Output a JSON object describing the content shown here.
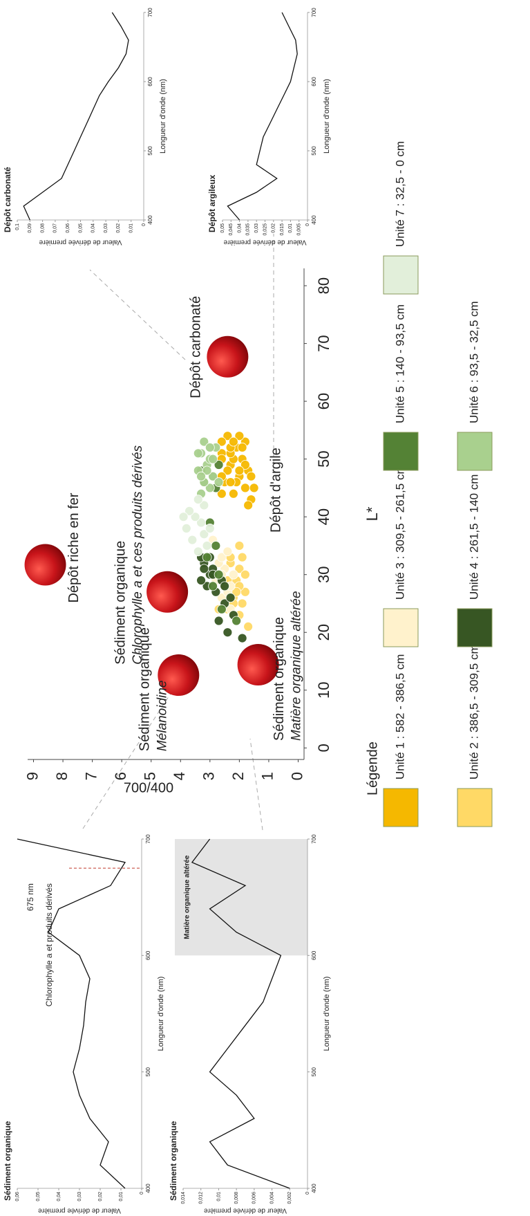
{
  "chart_data": [
    {
      "type": "scatter",
      "xlabel": "L*",
      "ylabel": "700/400",
      "xlim": [
        -2,
        83
      ],
      "ylim": [
        -0.2,
        9.2
      ],
      "xticks": [
        0,
        10,
        20,
        30,
        40,
        50,
        60,
        70,
        80
      ],
      "yticks": [
        0,
        1,
        2,
        3,
        4,
        5,
        6,
        7,
        8,
        9
      ],
      "grid": false,
      "legend_title": "Légende",
      "series": [
        {
          "name": "Unité 1 : 582 - 386,5 cm",
          "color": "#f5b800",
          "x": [
            43,
            44,
            45,
            46,
            47,
            48,
            49,
            50,
            51,
            52,
            53,
            54,
            44,
            46,
            48,
            50,
            52,
            54,
            45,
            47,
            49,
            51,
            53,
            42,
            47,
            50,
            52,
            48,
            46,
            53
          ],
          "values": [
            1.6,
            2.2,
            1.8,
            2.5,
            2.0,
            1.7,
            2.3,
            1.9,
            2.6,
            2.1,
            1.8,
            2.4,
            2.6,
            2.1,
            2.4,
            2.2,
            1.9,
            2.0,
            1.5,
            2.6,
            1.8,
            2.3,
            2.6,
            1.7,
            1.6,
            2.6,
            2.3,
            2.0,
            2.3,
            2.2
          ]
        },
        {
          "name": "Unité 2 : 386,5 - 309,5 cm",
          "color": "#ffd966",
          "x": [
            21,
            23,
            24,
            25,
            26,
            27,
            28,
            29,
            30,
            31,
            32,
            33,
            34,
            24,
            26,
            28,
            30,
            32,
            25,
            29,
            31,
            33,
            27,
            35
          ],
          "values": [
            1.7,
            2.0,
            2.4,
            1.9,
            2.2,
            1.8,
            2.5,
            2.1,
            2.6,
            2.0,
            2.3,
            1.9,
            2.4,
            2.7,
            2.6,
            2.0,
            1.8,
            2.7,
            2.2,
            2.4,
            2.5,
            2.3,
            2.1,
            2.0
          ]
        },
        {
          "name": "Unité 3 : 309,5 - 261,5 cm",
          "color": "#fff2cc",
          "x": [
            24,
            26,
            27,
            29,
            30,
            31,
            32,
            33,
            34,
            36,
            28,
            30
          ],
          "values": [
            2.3,
            2.6,
            2.4,
            2.8,
            2.2,
            2.5,
            2.7,
            2.6,
            2.4,
            2.9,
            2.3,
            2.6
          ]
        },
        {
          "name": "Unité 4 : 261,5 - 140 cm",
          "color": "#375623",
          "x": [
            19,
            20,
            22,
            23,
            25,
            27,
            28,
            29,
            30,
            31,
            32,
            33,
            26,
            29,
            31,
            33,
            28,
            30
          ],
          "values": [
            1.9,
            2.4,
            2.7,
            2.2,
            2.5,
            2.8,
            3.1,
            2.6,
            3.0,
            2.9,
            3.2,
            3.0,
            2.3,
            3.3,
            3.2,
            3.3,
            2.5,
            2.9
          ]
        },
        {
          "name": "Unité 5 : 140 - 93,5 cm",
          "color": "#548235",
          "x": [
            22,
            24,
            28,
            30,
            33,
            35,
            39,
            45,
            46,
            47,
            49,
            48
          ],
          "values": [
            2.1,
            2.6,
            2.9,
            2.7,
            3.1,
            2.8,
            3.0,
            2.8,
            3.2,
            2.9,
            2.7,
            3.3
          ]
        },
        {
          "name": "Unité 6 : 93,5 - 32,5 cm",
          "color": "#a9d08e",
          "x": [
            44,
            45,
            46,
            47,
            48,
            49,
            50,
            51,
            52,
            53,
            46,
            48,
            50,
            52,
            47,
            51
          ],
          "values": [
            3.3,
            3.0,
            3.2,
            2.9,
            3.4,
            3.1,
            3.0,
            3.3,
            2.8,
            3.2,
            2.7,
            3.1,
            2.9,
            3.0,
            3.3,
            3.4
          ]
        },
        {
          "name": "Unité 7 : 32,5 - 0 cm",
          "color": "#e2efda",
          "x": [
            34,
            35,
            36,
            37,
            38,
            39,
            40,
            41,
            42,
            43,
            38,
            40
          ],
          "values": [
            3.4,
            3.1,
            3.6,
            3.2,
            3.8,
            3.3,
            3.5,
            3.7,
            3.2,
            3.4,
            3.0,
            3.9
          ]
        }
      ],
      "zones": [
        {
          "label": "Dépôt riche en fer",
          "x": 31.7,
          "y": 8.6
        },
        {
          "label": "Sédiment organique",
          "sublabel": "Chlorophylle a et ces produits dérivés",
          "x": 27,
          "y": 4.45
        },
        {
          "label": "Sédiment organique",
          "sublabel": "Mélanoidine",
          "x": 12.6,
          "y": 4.07
        },
        {
          "label": "Sédiment organique",
          "sublabel": "Matière organique altérée",
          "x": 14.4,
          "y": 1.36
        },
        {
          "label": "Dépôt carbonaté",
          "x": 67.7,
          "y": 2.4
        },
        {
          "label": "Dépôt d'argile"
        }
      ]
    },
    {
      "type": "line",
      "title": "Dépôt carbonaté",
      "xlabel": "Longueur d'onde (nm)",
      "ylabel": "Valeur de dérivée première",
      "x": [
        400,
        420,
        440,
        460,
        480,
        500,
        520,
        540,
        560,
        580,
        600,
        620,
        640,
        660,
        680,
        700
      ],
      "series": [
        {
          "color": "#111111",
          "values": [
            0.09,
            0.095,
            0.08,
            0.065,
            0.06,
            0.055,
            0.05,
            0.045,
            0.04,
            0.035,
            0.028,
            0.02,
            0.014,
            0.012,
            0.018,
            0.025
          ]
        }
      ],
      "xlim": [
        400,
        700
      ],
      "xticks": [
        400,
        500,
        600,
        700
      ],
      "ylim": [
        0,
        0.1
      ],
      "yticks": [
        0,
        {
          "value": 0.01,
          "label": "0,01"
        },
        {
          "value": 0.02,
          "label": "0,02"
        },
        {
          "value": 0.03,
          "label": "0,03"
        },
        {
          "value": 0.04,
          "label": "0,04"
        },
        {
          "value": 0.05,
          "label": "0,05"
        },
        {
          "value": 0.06,
          "label": "0,06"
        },
        {
          "value": 0.07,
          "label": "0,07"
        },
        {
          "value": 0.08,
          "label": "0,08"
        },
        {
          "value": 0.09,
          "label": "0,09"
        },
        {
          "value": 0.1,
          "label": "0,1"
        }
      ]
    },
    {
      "type": "line",
      "title": "Dépôt argileux",
      "xlabel": "Longueur d'onde (nm)",
      "ylabel": "Valeur de dérivée première",
      "x": [
        400,
        420,
        440,
        460,
        480,
        500,
        520,
        540,
        560,
        580,
        600,
        620,
        640,
        660,
        680,
        700
      ],
      "series": [
        {
          "color": "#111111",
          "values": [
            0.04,
            0.047,
            0.03,
            0.018,
            0.03,
            0.028,
            0.026,
            0.022,
            0.018,
            0.014,
            0.01,
            0.008,
            0.006,
            0.007,
            0.011,
            0.015
          ]
        }
      ],
      "xlim": [
        400,
        700
      ],
      "xticks": [
        400,
        500,
        600,
        700
      ],
      "ylim": [
        0,
        0.05
      ],
      "yticks": [
        0,
        {
          "value": 0.005,
          "label": "0,005"
        },
        {
          "value": 0.01,
          "label": "0,01"
        },
        {
          "value": 0.015,
          "label": "0,015"
        },
        {
          "value": 0.02,
          "label": "0,02"
        },
        {
          "value": 0.025,
          "label": "0,025"
        },
        {
          "value": 0.03,
          "label": "0,03"
        },
        {
          "value": 0.035,
          "label": "0,035"
        },
        {
          "value": 0.04,
          "label": "0,04"
        },
        {
          "value": 0.045,
          "label": "0,045"
        },
        {
          "value": 0.05,
          "label": "0,05"
        }
      ]
    },
    {
      "type": "line",
      "title": "Sédiment organique",
      "xlabel": "Longueur d'onde (nm)",
      "ylabel": "Valeur de dérivée première",
      "x": [
        400,
        420,
        440,
        460,
        480,
        500,
        520,
        540,
        560,
        580,
        600,
        620,
        640,
        660,
        680,
        700
      ],
      "series": [
        {
          "color": "#111111",
          "values": [
            0.008,
            0.02,
            0.016,
            0.025,
            0.03,
            0.033,
            0.03,
            0.028,
            0.027,
            0.025,
            0.03,
            0.045,
            0.04,
            0.015,
            0.008,
            0.06
          ]
        }
      ],
      "xlim": [
        400,
        700
      ],
      "xticks": [
        400,
        500,
        600,
        700
      ],
      "ylim": [
        0,
        0.06
      ],
      "yticks": [
        0,
        {
          "value": 0.01,
          "label": "0,01"
        },
        {
          "value": 0.02,
          "label": "0,02"
        },
        {
          "value": 0.03,
          "label": "0,03"
        },
        {
          "value": 0.04,
          "label": "0,04"
        },
        {
          "value": 0.05,
          "label": "0,05"
        },
        {
          "value": 0.06,
          "label": "0,06"
        }
      ],
      "marker": {
        "value": 675,
        "label": "675 nm",
        "note": "Chlorophylle a et produits dérivés",
        "color": "#c0392b"
      }
    },
    {
      "type": "line",
      "title": "Sédiment organique",
      "xlabel": "Longueur d'onde (nm)",
      "ylabel": "Valeur de dérivée première",
      "x": [
        400,
        420,
        440,
        460,
        480,
        500,
        520,
        540,
        560,
        580,
        600,
        620,
        640,
        660,
        680,
        700
      ],
      "series": [
        {
          "color": "#111111",
          "values": [
            0.002,
            0.009,
            0.011,
            0.006,
            0.008,
            0.011,
            0.009,
            0.007,
            0.005,
            0.004,
            0.003,
            0.008,
            0.011,
            0.007,
            0.013,
            0.011
          ]
        }
      ],
      "xlim": [
        400,
        700
      ],
      "xticks": [
        400,
        500,
        600,
        700
      ],
      "ylim": [
        0,
        0.014
      ],
      "yticks": [
        0,
        {
          "value": 0.002,
          "label": "0,002"
        },
        {
          "value": 0.004,
          "label": "0,004"
        },
        {
          "value": 0.006,
          "label": "0,006"
        },
        {
          "value": 0.008,
          "label": "0,008"
        },
        {
          "value": 0.01,
          "label": "0,01"
        },
        {
          "value": 0.012,
          "label": "0,012"
        },
        {
          "value": 0.014,
          "label": "0,014"
        }
      ],
      "shade": {
        "from": 600,
        "to": 700,
        "label": "Matière organique altérée"
      }
    }
  ]
}
